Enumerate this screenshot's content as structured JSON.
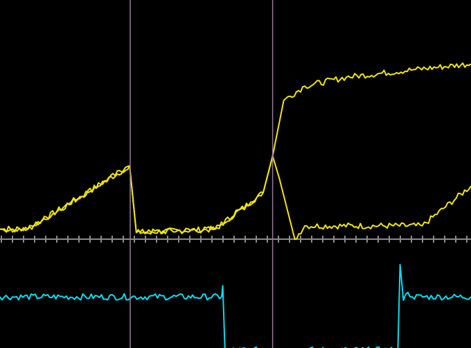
{
  "chart_data": {
    "type": "line",
    "title": "",
    "xlabel": "",
    "ylabel": "",
    "x_unit": "divisions",
    "y_unit": "divisions",
    "xlim": [
      0,
      42.5
    ],
    "ylim": [
      -9.9,
      21.5
    ],
    "grid": false,
    "background": "#000000",
    "axis_color": "#8c8c8c",
    "tick_spacing_div": 1,
    "cursors": [
      {
        "x": 11.75,
        "color": "#9a7a9a"
      },
      {
        "x": 24.6,
        "color": "#9a7a9a"
      }
    ],
    "series": [
      {
        "color": "#f0e800",
        "points": [
          [
            0,
            0.9
          ],
          [
            2.5,
            0.9
          ],
          [
            11.7,
            6.6
          ],
          [
            12.3,
            0.6
          ],
          [
            19.4,
            0.9
          ],
          [
            23.75,
            4.2
          ],
          [
            24.6,
            7.5
          ],
          [
            25.2,
            5.5
          ],
          [
            26.6,
            0
          ],
          [
            27.5,
            1.2
          ],
          [
            38.1,
            1.2
          ],
          [
            42.5,
            4.8
          ]
        ]
      },
      {
        "color": "#f0e800",
        "points": [
          [
            0,
            0.9
          ],
          [
            2.5,
            0.9
          ],
          [
            11.7,
            6.6
          ],
          [
            12.3,
            0.6
          ],
          [
            19.4,
            0.9
          ],
          [
            23.75,
            4.2
          ],
          [
            24.6,
            7.5
          ],
          [
            25.6,
            12.5
          ],
          [
            27.5,
            13.8
          ],
          [
            31.25,
            14.6
          ],
          [
            37.5,
            15.3
          ],
          [
            42.5,
            15.8
          ]
        ]
      },
      {
        "color": "#00e0f0",
        "points": [
          [
            0,
            -5.2
          ],
          [
            20.0,
            -5.2
          ],
          [
            20.1,
            -4.2
          ],
          [
            20.3,
            -10
          ],
          [
            35.9,
            -10
          ],
          [
            36.1,
            -2.3
          ],
          [
            36.4,
            -5.5
          ],
          [
            36.8,
            -4.8
          ],
          [
            37.2,
            -5.2
          ],
          [
            42.5,
            -5.2
          ]
        ]
      }
    ]
  }
}
